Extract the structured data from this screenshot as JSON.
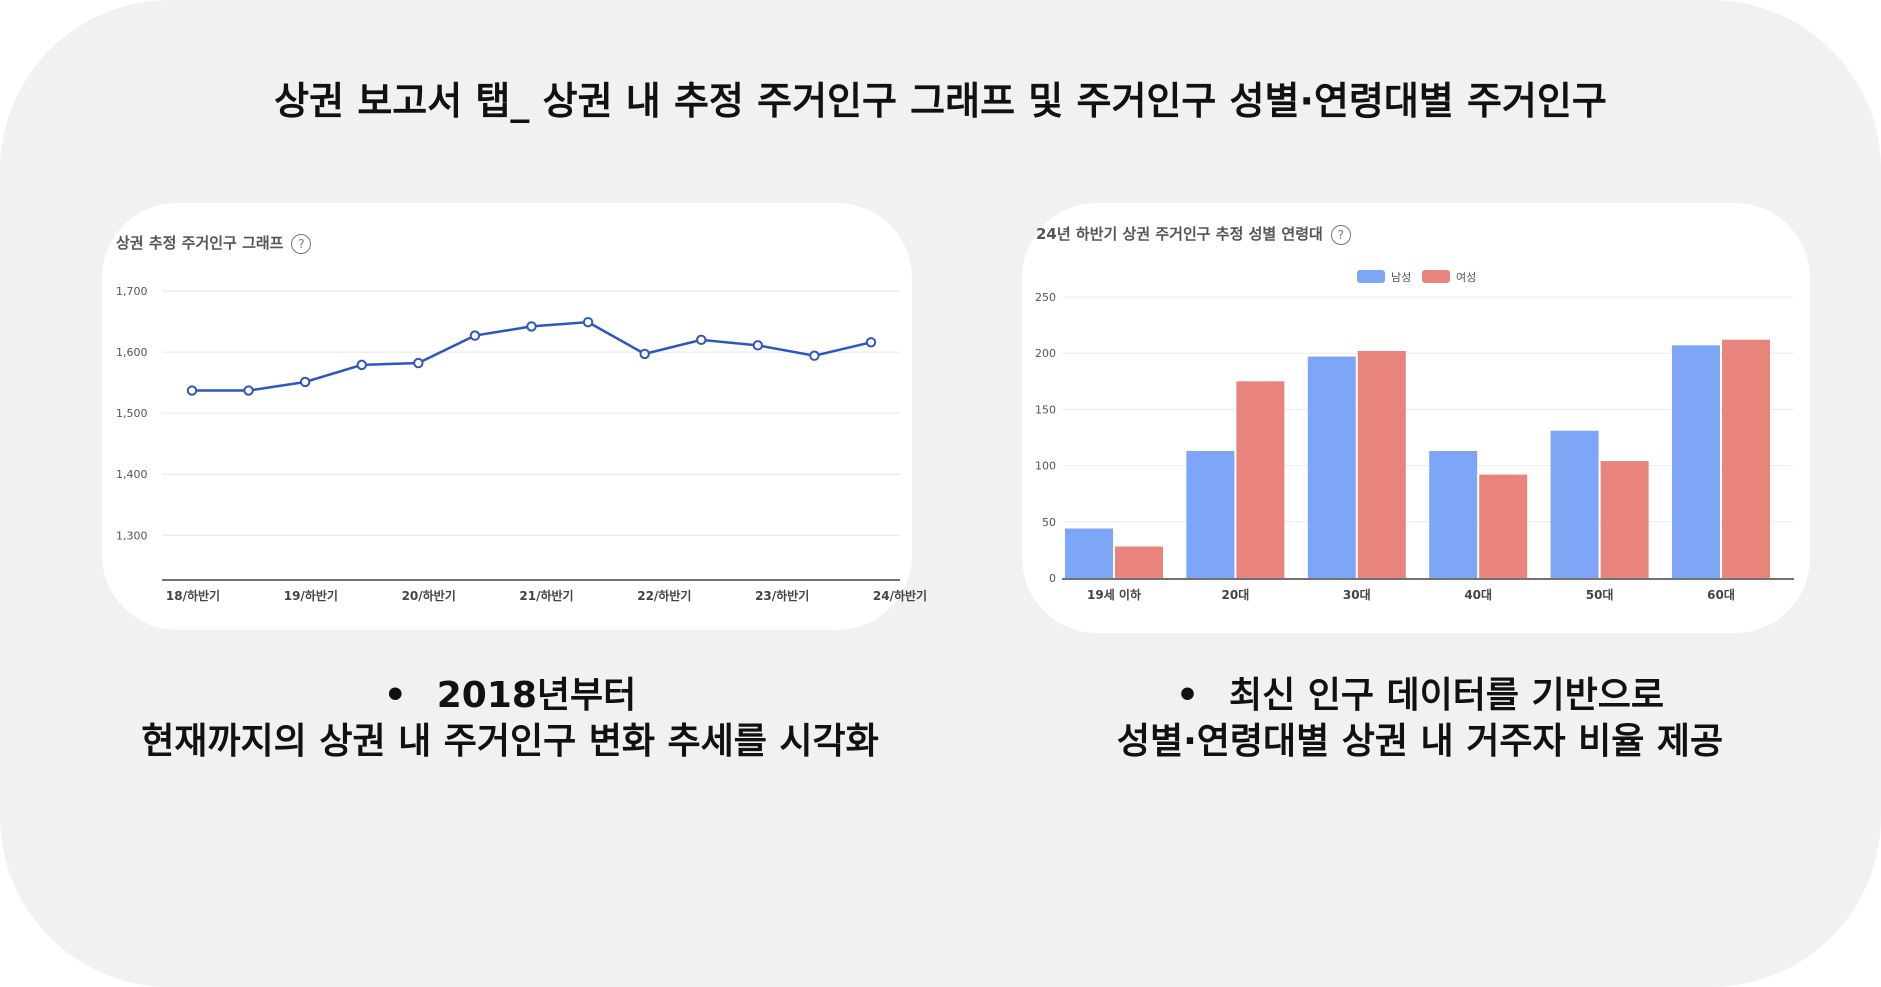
{
  "title": "상권 보고서 탭_ 상권 내 추정 주거인구 그래프 및 주거인구 성별·연령대별 주거인구",
  "left_card": {
    "title": "상권 추정 주거인구 그래프",
    "help": "?"
  },
  "right_card": {
    "title": "24년 하반기 상권 주거인구 추정 성별 연령대",
    "help": "?"
  },
  "captions": {
    "bullet": "•",
    "left_line1": "2018년부터",
    "left_line2": "현재까지의 상권 내 주거인구 변화 추세를 시각화",
    "right_line1": "최신 인구 데이터를 기반으로",
    "right_line2": "성별·연령대별 상권 내 거주자 비율 제공"
  },
  "chart_data": [
    {
      "type": "line",
      "title": "상권 추정 주거인구 그래프",
      "x_ticks": [
        "18/하반기",
        "19/하반기",
        "20/하반기",
        "21/하반기",
        "22/하반기",
        "23/하반기",
        "24/하반기"
      ],
      "y_ticks": [
        "1,700",
        "1,600",
        "1,500",
        "1,400",
        "1,300"
      ],
      "ylim": [
        1230,
        1700
      ],
      "grid": true,
      "color": "#2f56c0",
      "series": [
        {
          "values": [
            1537,
            1537,
            1551,
            1579,
            1582,
            1627,
            1642,
            1649,
            1597,
            1620,
            1611,
            1594,
            1616
          ]
        }
      ]
    },
    {
      "type": "bar",
      "title": "24년 하반기 상권 주거인구 추정 성별 연령대",
      "categories": [
        "19세 이하",
        "20대",
        "30대",
        "40대",
        "50대",
        "60대"
      ],
      "y_ticks": [
        "250",
        "200",
        "150",
        "100",
        "50",
        "0"
      ],
      "ylim": [
        0,
        250
      ],
      "grid": true,
      "legend": "top-center",
      "series": [
        {
          "name": "남성",
          "color": "#7ea6f7",
          "values": [
            44,
            113,
            197,
            113,
            131,
            207
          ]
        },
        {
          "name": "여성",
          "color": "#e8847b",
          "values": [
            28,
            175,
            202,
            92,
            104,
            212
          ]
        }
      ]
    }
  ]
}
